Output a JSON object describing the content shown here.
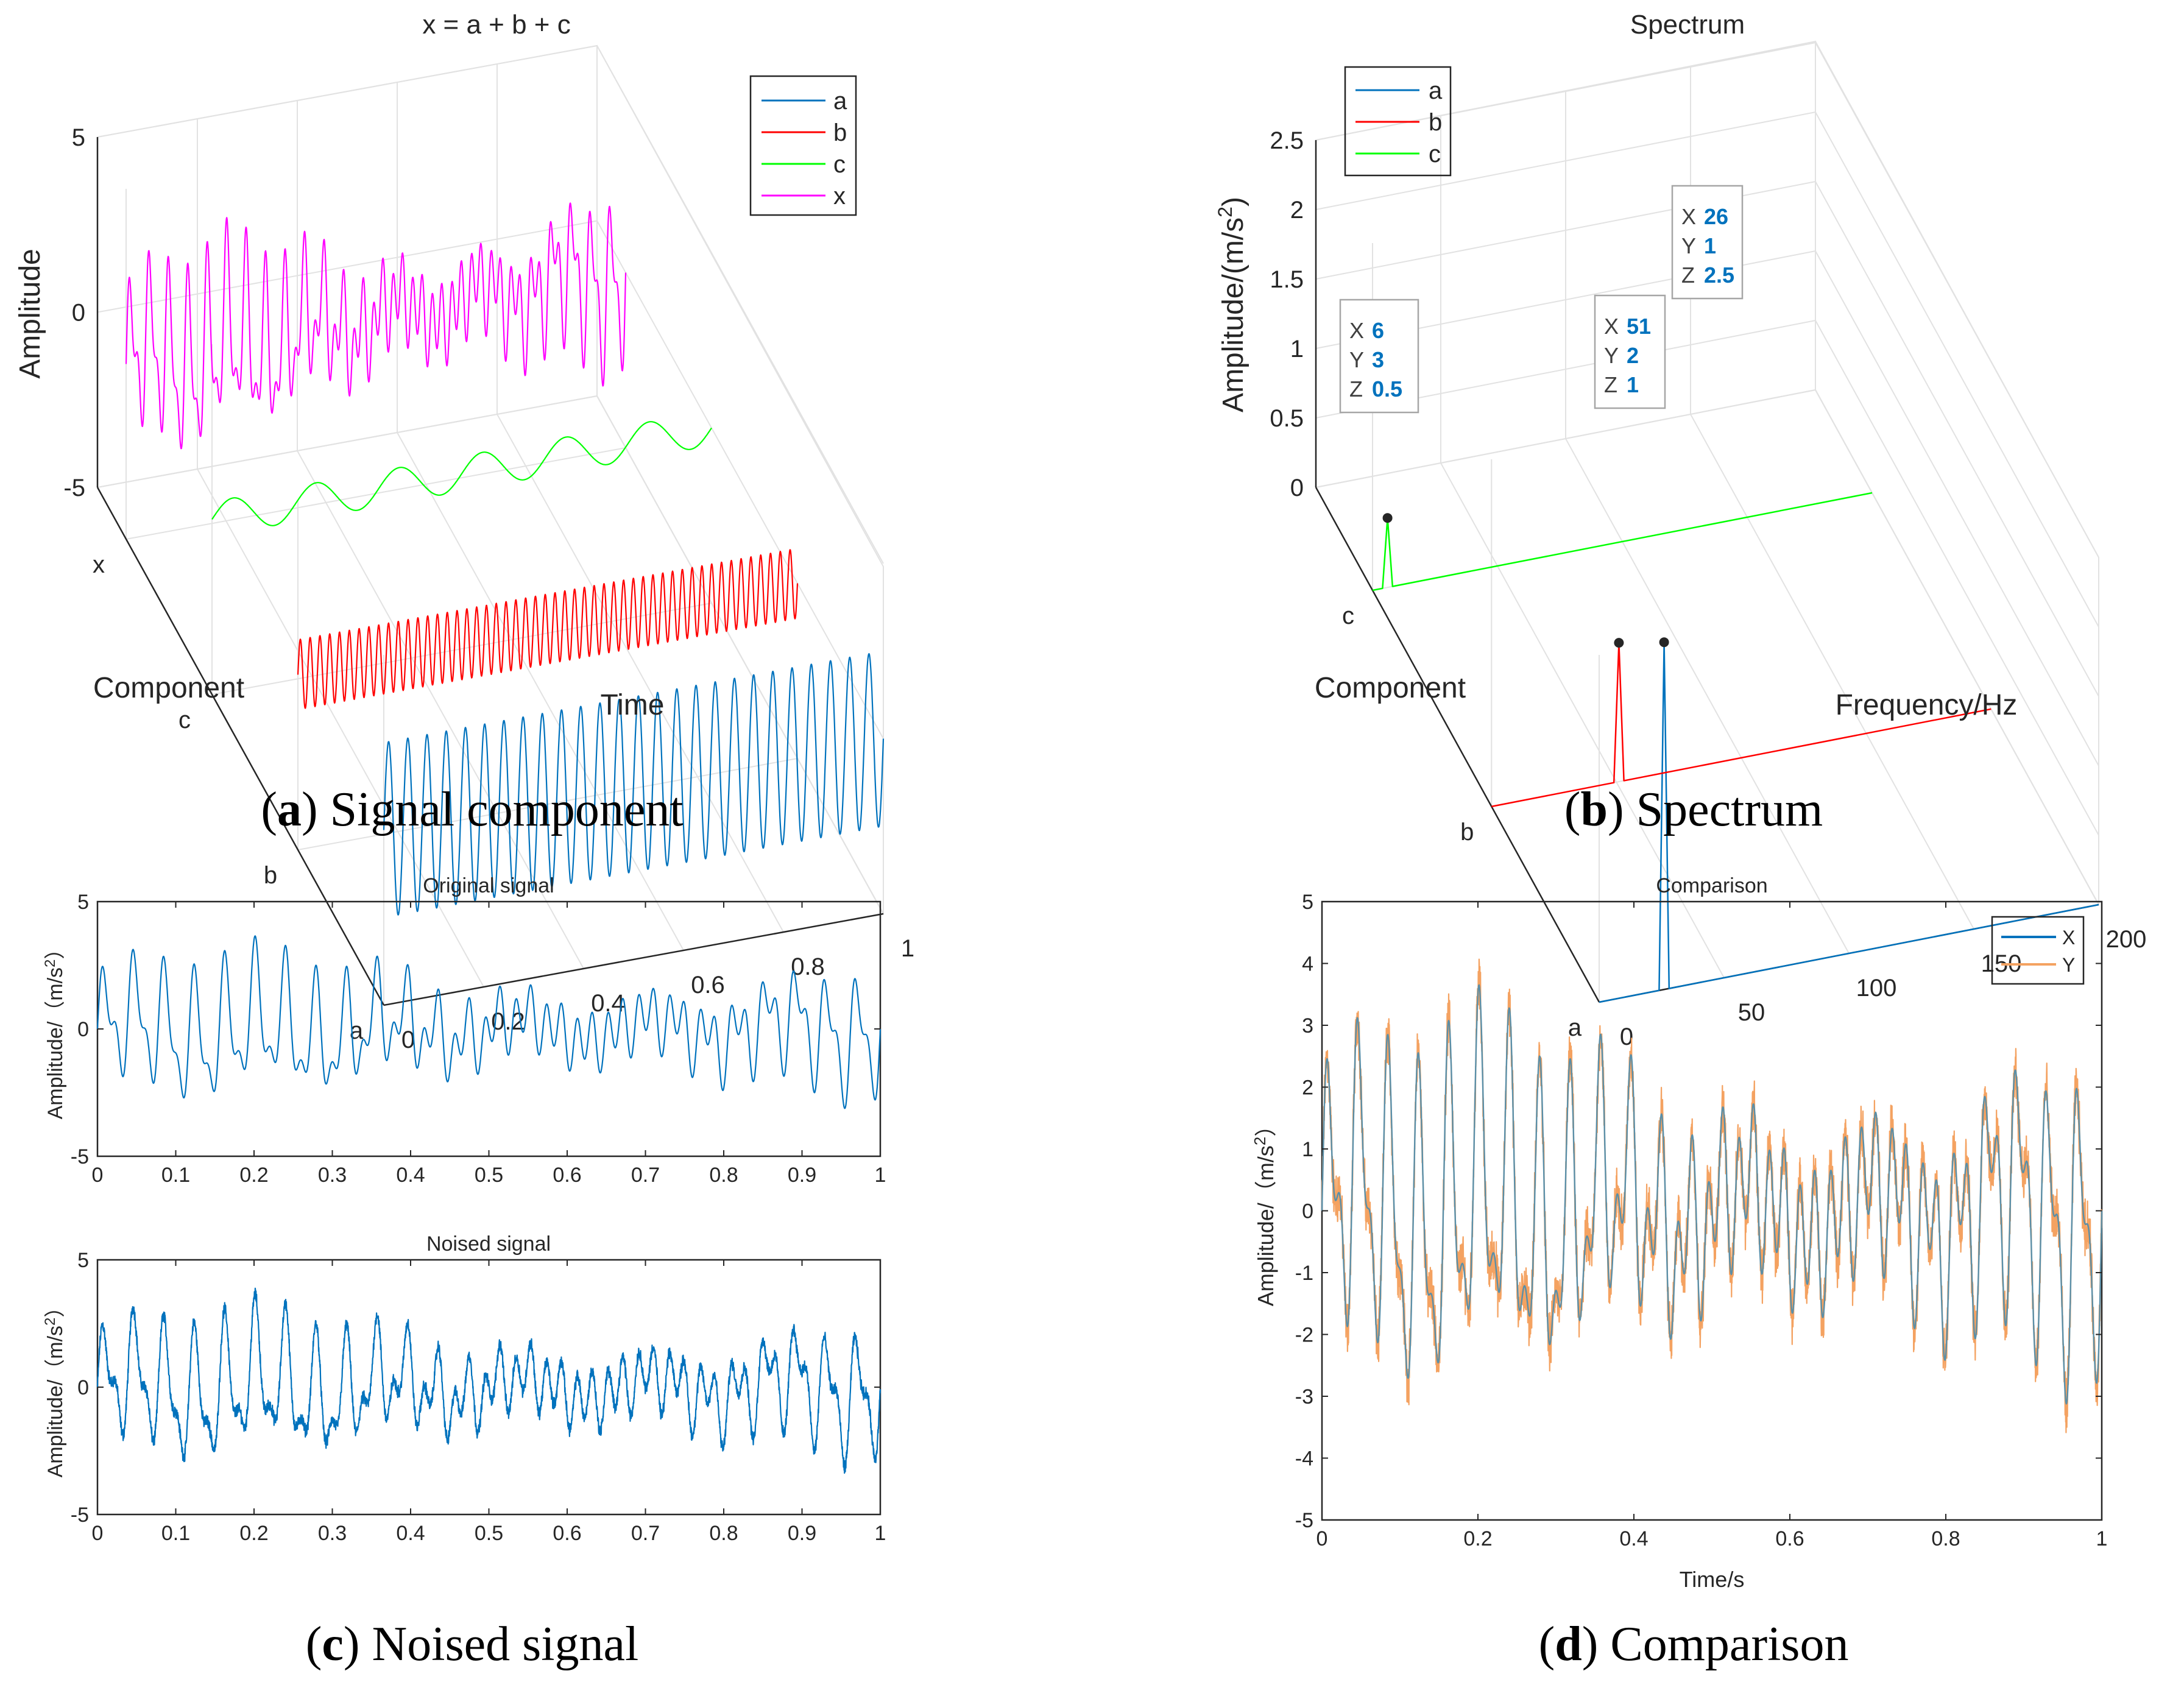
{
  "colors": {
    "a": "#0072bd",
    "b": "#ff0000",
    "c": "#00ff00",
    "x": "#ff00ff",
    "X": "#0072bd",
    "Y": "#f4a261"
  },
  "captions": {
    "a": {
      "letter": "a",
      "text": " Signal component"
    },
    "b": {
      "letter": "b",
      "text": " Spectrum"
    },
    "c": {
      "letter": "c",
      "text": " Noised signal"
    },
    "d": {
      "letter": "d",
      "text": " Comparison"
    }
  },
  "chart_data": [
    {
      "id": "a",
      "type": "line",
      "dimension": "3d",
      "title": "x = a + b + c",
      "xlabel": "Time",
      "ylabel": "Component",
      "zlabel": "Amplitude",
      "xticks": [
        "0",
        "0.2",
        "0.4",
        "0.6",
        "0.8",
        "1"
      ],
      "yticks": [
        "a",
        "b",
        "c",
        "x"
      ],
      "zticks": [
        "-5",
        "0",
        "5"
      ],
      "xlim": [
        0,
        1
      ],
      "zlim": [
        -5,
        5
      ],
      "legend": [
        "a",
        "b",
        "c",
        "x"
      ],
      "legend_position": "top-right",
      "series": [
        {
          "name": "a",
          "component": "a",
          "frequency_hz": 26,
          "amplitude": 2.5
        },
        {
          "name": "b",
          "component": "b",
          "frequency_hz": 51,
          "amplitude": 1
        },
        {
          "name": "c",
          "component": "c",
          "frequency_hz": 6,
          "amplitude": 0.5
        },
        {
          "name": "x",
          "component": "x",
          "formula": "a + b + c"
        }
      ]
    },
    {
      "id": "b",
      "type": "line",
      "dimension": "3d",
      "title": "Spectrum",
      "xlabel": "Frequency/Hz",
      "ylabel": "Component",
      "zlabel": "Amplitude/(m/s",
      "zlabel_sup": "2",
      "zlabel_end": ")",
      "xticks": [
        "0",
        "50",
        "100",
        "150",
        "200"
      ],
      "yticks": [
        "a",
        "b",
        "c"
      ],
      "zticks": [
        "0",
        "0.5",
        "1",
        "1.5",
        "2",
        "2.5"
      ],
      "xlim": [
        0,
        200
      ],
      "zlim": [
        0,
        2.5
      ],
      "legend": [
        "a",
        "b",
        "c"
      ],
      "legend_position": "top-left",
      "peaks": [
        {
          "series": "a",
          "X": "26",
          "Y": "1",
          "Z": "2.5"
        },
        {
          "series": "b",
          "X": "51",
          "Y": "2",
          "Z": "1"
        },
        {
          "series": "c",
          "X": "6",
          "Y": "3",
          "Z": "0.5"
        }
      ]
    },
    {
      "id": "c1",
      "type": "line",
      "title": "Original signal",
      "xlabel": "",
      "ylabel": "Amplitude/（m/s",
      "ylabel_sup": "2",
      "ylabel_end": "）",
      "xticks": [
        "0",
        "0.1",
        "0.2",
        "0.3",
        "0.4",
        "0.5",
        "0.6",
        "0.7",
        "0.8",
        "0.9",
        "1"
      ],
      "yticks": [
        "-5",
        "0",
        "5"
      ],
      "xlim": [
        0,
        1
      ],
      "ylim": [
        -5,
        5
      ],
      "series": [
        {
          "name": "x",
          "noise": false
        }
      ]
    },
    {
      "id": "c2",
      "type": "line",
      "title": "Noised signal",
      "xlabel": "",
      "ylabel": "Amplitude/（m/s",
      "ylabel_sup": "2",
      "ylabel_end": "）",
      "xticks": [
        "0",
        "0.1",
        "0.2",
        "0.3",
        "0.4",
        "0.5",
        "0.6",
        "0.7",
        "0.8",
        "0.9",
        "1"
      ],
      "yticks": [
        "-5",
        "0",
        "5"
      ],
      "xlim": [
        0,
        1
      ],
      "ylim": [
        -5,
        5
      ],
      "series": [
        {
          "name": "x",
          "noise": true
        }
      ]
    },
    {
      "id": "d",
      "type": "line",
      "title": "Comparison",
      "xlabel": "Time/s",
      "ylabel": "Amplitude/（m/s",
      "ylabel_sup": "2",
      "ylabel_end": "）",
      "xticks": [
        "0",
        "0.2",
        "0.4",
        "0.6",
        "0.8",
        "1"
      ],
      "yticks": [
        "-5",
        "-4",
        "-3",
        "-2",
        "-1",
        "0",
        "1",
        "2",
        "3",
        "4",
        "5"
      ],
      "xlim": [
        0,
        1
      ],
      "ylim": [
        -5,
        5
      ],
      "legend": [
        "X",
        "Y"
      ],
      "legend_position": "top-right",
      "series": [
        {
          "name": "X",
          "noise": false
        },
        {
          "name": "Y",
          "noise": true
        }
      ]
    }
  ]
}
